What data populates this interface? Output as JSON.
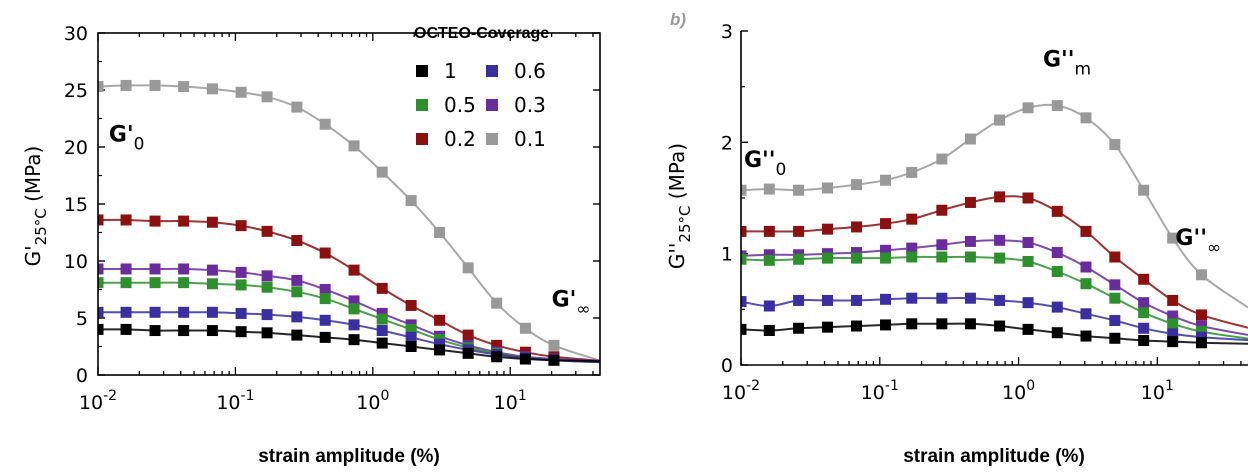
{
  "chart_data": [
    {
      "type": "scatter",
      "panel_label": "",
      "xlabel": "strain amplitude (%)",
      "ylabel": "G'25°C (MPa)",
      "ylabel_parts": {
        "main": "G'",
        "sub": "25°C",
        "rest": " (MPa)"
      },
      "x_scale": "log",
      "xlim": [
        0.01,
        45
      ],
      "ylim": [
        0,
        30
      ],
      "x_ticks": [
        {
          "value": 0.01,
          "base": "10",
          "exp": "-2"
        },
        {
          "value": 0.1,
          "base": "10",
          "exp": "-1"
        },
        {
          "value": 1,
          "base": "10",
          "exp": "0"
        },
        {
          "value": 10,
          "base": "10",
          "exp": "1"
        }
      ],
      "y_ticks": [
        "0",
        "5",
        "10",
        "15",
        "20",
        "25",
        "30"
      ],
      "grid": false,
      "annotations": [
        {
          "text": "G'",
          "sub": "0",
          "x": 0.012,
          "y": 20.5
        },
        {
          "text": "G'",
          "sub": "∞",
          "x": 20,
          "y": 6.0
        }
      ],
      "legend": {
        "title": "OCTEO-Coverage",
        "position": "top-right",
        "entries": [
          {
            "label": "1",
            "color": "#000000"
          },
          {
            "label": "0.6",
            "color": "#3a2ea0"
          },
          {
            "label": "0.5",
            "color": "#2f8f2f"
          },
          {
            "label": "0.3",
            "color": "#6a2c9c"
          },
          {
            "label": "0.2",
            "color": "#8b1010"
          },
          {
            "label": "0.1",
            "color": "#999999"
          }
        ]
      },
      "x": [
        0.01,
        0.016,
        0.026,
        0.042,
        0.068,
        0.11,
        0.17,
        0.28,
        0.45,
        0.73,
        1.17,
        1.9,
        3.06,
        4.94,
        7.97,
        12.9,
        20.8
      ],
      "series": [
        {
          "name": "0.1",
          "color": "#999999",
          "values": [
            25.3,
            25.4,
            25.4,
            25.3,
            25.1,
            24.8,
            24.4,
            23.5,
            22.0,
            20.1,
            17.8,
            15.3,
            12.5,
            9.4,
            6.3,
            4.1,
            2.6
          ]
        },
        {
          "name": "0.2",
          "color": "#8b1010",
          "values": [
            13.6,
            13.6,
            13.5,
            13.5,
            13.4,
            13.1,
            12.6,
            11.8,
            10.7,
            9.2,
            7.6,
            6.1,
            4.8,
            3.5,
            2.6,
            2.0,
            1.6
          ]
        },
        {
          "name": "0.3",
          "color": "#6a2c9c",
          "values": [
            9.3,
            9.3,
            9.3,
            9.3,
            9.2,
            9.0,
            8.7,
            8.3,
            7.5,
            6.5,
            5.4,
            4.4,
            3.4,
            2.6,
            2.0,
            1.6,
            1.4
          ]
        },
        {
          "name": "0.5",
          "color": "#2f8f2f",
          "values": [
            8.1,
            8.1,
            8.1,
            8.1,
            8.0,
            7.9,
            7.7,
            7.3,
            6.7,
            5.8,
            4.9,
            4.0,
            3.1,
            2.4,
            1.9,
            1.5,
            1.3
          ]
        },
        {
          "name": "0.6",
          "color": "#3a2ea0",
          "values": [
            5.5,
            5.5,
            5.5,
            5.5,
            5.5,
            5.4,
            5.3,
            5.1,
            4.8,
            4.4,
            3.9,
            3.3,
            2.7,
            2.2,
            1.8,
            1.5,
            1.3
          ]
        },
        {
          "name": "1",
          "color": "#000000",
          "values": [
            4.0,
            4.0,
            3.9,
            3.9,
            3.9,
            3.8,
            3.7,
            3.5,
            3.3,
            3.1,
            2.8,
            2.5,
            2.2,
            1.9,
            1.6,
            1.4,
            1.3
          ]
        }
      ]
    },
    {
      "type": "scatter",
      "panel_label": "b)",
      "xlabel": "strain amplitude (%)",
      "ylabel": "G''25°C (MPa)",
      "ylabel_parts": {
        "main": "G''",
        "sub": "25°C",
        "rest": " (MPa)"
      },
      "x_scale": "log",
      "xlim": [
        0.01,
        45
      ],
      "ylim": [
        0,
        3
      ],
      "x_ticks": [
        {
          "value": 0.01,
          "base": "10",
          "exp": "-2"
        },
        {
          "value": 0.1,
          "base": "10",
          "exp": "-1"
        },
        {
          "value": 1,
          "base": "10",
          "exp": "0"
        },
        {
          "value": 10,
          "base": "10",
          "exp": "1"
        }
      ],
      "y_ticks": [
        "0",
        "1",
        "2",
        "3"
      ],
      "grid": false,
      "annotations": [
        {
          "text": "G''",
          "sub": "0",
          "x": 0.0105,
          "y": 1.78
        },
        {
          "text": "G''",
          "sub": "m",
          "x": 1.5,
          "y": 2.68
        },
        {
          "text": "G''",
          "sub": "∞",
          "x": 13.5,
          "y": 1.08
        }
      ],
      "x": [
        0.01,
        0.016,
        0.026,
        0.042,
        0.068,
        0.11,
        0.17,
        0.28,
        0.45,
        0.73,
        1.17,
        1.9,
        3.06,
        4.94,
        7.97,
        12.9,
        20.8
      ],
      "series": [
        {
          "name": "0.1",
          "color": "#999999",
          "values": [
            1.57,
            1.58,
            1.57,
            1.59,
            1.62,
            1.66,
            1.73,
            1.85,
            2.03,
            2.2,
            2.31,
            2.33,
            2.22,
            1.98,
            1.57,
            1.14,
            0.81
          ]
        },
        {
          "name": "0.2",
          "color": "#8b1010",
          "values": [
            1.2,
            1.2,
            1.2,
            1.22,
            1.24,
            1.27,
            1.31,
            1.39,
            1.46,
            1.51,
            1.5,
            1.38,
            1.2,
            0.97,
            0.77,
            0.58,
            0.45
          ]
        },
        {
          "name": "0.3",
          "color": "#6a2c9c",
          "values": [
            0.98,
            0.99,
            0.99,
            1.0,
            1.01,
            1.03,
            1.05,
            1.08,
            1.11,
            1.12,
            1.1,
            1.01,
            0.88,
            0.72,
            0.56,
            0.44,
            0.35
          ]
        },
        {
          "name": "0.5",
          "color": "#2f8f2f",
          "values": [
            0.95,
            0.94,
            0.95,
            0.96,
            0.96,
            0.96,
            0.97,
            0.97,
            0.97,
            0.96,
            0.93,
            0.84,
            0.73,
            0.6,
            0.47,
            0.37,
            0.3
          ]
        },
        {
          "name": "0.6",
          "color": "#3a2ea0",
          "values": [
            0.57,
            0.53,
            0.58,
            0.58,
            0.58,
            0.59,
            0.6,
            0.6,
            0.6,
            0.58,
            0.56,
            0.52,
            0.46,
            0.4,
            0.33,
            0.28,
            0.25
          ]
        },
        {
          "name": "1",
          "color": "#000000",
          "values": [
            0.32,
            0.31,
            0.33,
            0.34,
            0.35,
            0.36,
            0.37,
            0.37,
            0.37,
            0.35,
            0.32,
            0.29,
            0.26,
            0.24,
            0.22,
            0.21,
            0.2
          ]
        }
      ]
    }
  ]
}
